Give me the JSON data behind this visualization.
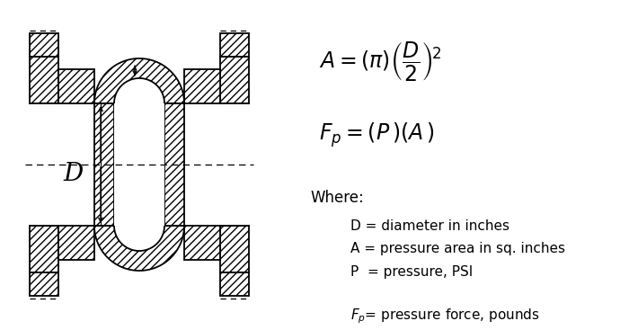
{
  "bg_color": "#ffffff",
  "lc": "#000000",
  "figsize": [
    7.0,
    3.67
  ],
  "dpi": 100,
  "label_D": "D",
  "formula1": "$A = ( \\pi )\\left(\\dfrac{D}{2}\\right)^{\\!2}$",
  "formula2": "$F_p = ( P\\, )( A\\, )$",
  "where": "Where:",
  "defs": [
    "D = diameter in inches",
    "A = pressure area in sq. inches",
    "P  = pressure, PSI"
  ],
  "def_fp": "$F_p$= pressure force, pounds"
}
